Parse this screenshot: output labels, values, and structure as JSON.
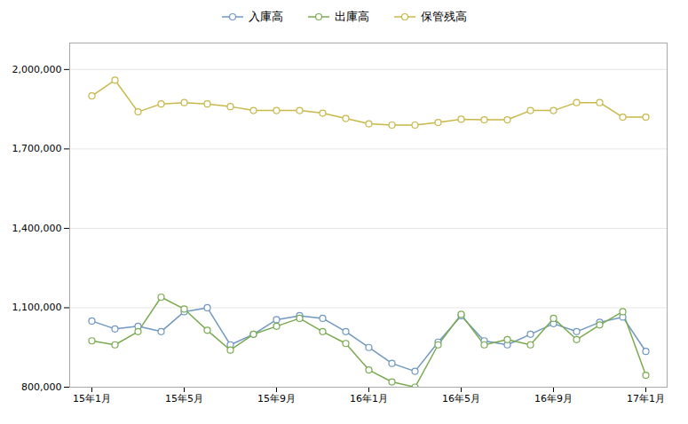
{
  "chart_data": {
    "type": "line",
    "categories": [
      "15年1月",
      null,
      null,
      null,
      "15年5月",
      null,
      null,
      null,
      "15年9月",
      null,
      null,
      null,
      "16年1月",
      null,
      null,
      null,
      "16年5月",
      null,
      null,
      null,
      "16年9月",
      null,
      null,
      null,
      "17年1月"
    ],
    "series": [
      {
        "name": "入庫高",
        "color": "#7098c0",
        "values": [
          1050000,
          1020000,
          1030000,
          1010000,
          1085000,
          1100000,
          960000,
          1000000,
          1055000,
          1070000,
          1060000,
          1010000,
          950000,
          890000,
          860000,
          970000,
          1070000,
          975000,
          960000,
          1000000,
          1040000,
          1010000,
          1045000,
          1065000,
          935000
        ]
      },
      {
        "name": "出庫高",
        "color": "#7aab50",
        "values": [
          975000,
          960000,
          1010000,
          1140000,
          1095000,
          1015000,
          940000,
          1000000,
          1030000,
          1060000,
          1010000,
          965000,
          865000,
          820000,
          800000,
          960000,
          1075000,
          960000,
          980000,
          960000,
          1060000,
          980000,
          1035000,
          1085000,
          845000
        ]
      },
      {
        "name": "保管残高",
        "color": "#c8b84a",
        "values": [
          1900000,
          1960000,
          1840000,
          1870000,
          1875000,
          1870000,
          1860000,
          1845000,
          1845000,
          1845000,
          1835000,
          1815000,
          1795000,
          1790000,
          1790000,
          1800000,
          1812000,
          1810000,
          1810000,
          1845000,
          1845000,
          1875000,
          1875000,
          1820000,
          1820000
        ]
      }
    ],
    "ylim": [
      800000,
      2100000
    ],
    "yticks": [
      {
        "value": 800000,
        "label": "800,000"
      },
      {
        "value": 1100000,
        "label": "1,100,000"
      },
      {
        "value": 1400000,
        "label": "1,400,000"
      },
      {
        "value": 1700000,
        "label": "1,700,000"
      },
      {
        "value": 2000000,
        "label": "2,000,000"
      }
    ],
    "grid": true,
    "legend": "top",
    "marker": "circle"
  }
}
